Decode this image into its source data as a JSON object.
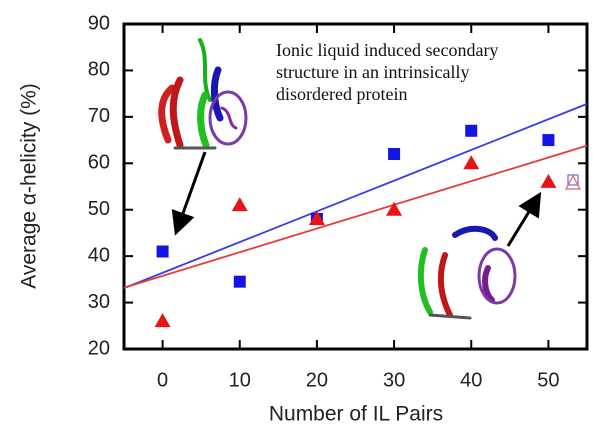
{
  "chart_data": {
    "type": "scatter",
    "xlabel": "Number of IL Pairs",
    "ylabel": "Average α-helicity (%)",
    "annotation": [
      "Ionic liquid induced secondary",
      "structure in an intrinsically",
      "disordered protein"
    ],
    "series": [
      {
        "color": "#1414e6",
        "marker": "square",
        "x": [
          0,
          10,
          20,
          30,
          40,
          50
        ],
        "values": [
          41,
          34.5,
          48,
          62,
          67,
          65
        ]
      },
      {
        "color": "#e61414",
        "marker": "triangle",
        "x": [
          0,
          10,
          20,
          30,
          40,
          50
        ],
        "values": [
          26,
          51,
          48,
          50,
          60,
          56
        ]
      }
    ],
    "fit_lines": [
      {
        "color": "#3a3ae8",
        "x": [
          -5,
          55
        ],
        "values": [
          33.1,
          72.8
        ]
      },
      {
        "color": "#e83a3a",
        "x": [
          -5,
          55
        ],
        "values": [
          33.2,
          63.8
        ]
      }
    ],
    "xlim": [
      -5,
      55
    ],
    "ylim": [
      20,
      90
    ],
    "xticks": [
      0,
      10,
      20,
      30,
      40,
      50
    ],
    "yticks": [
      20,
      30,
      40,
      50,
      60,
      70,
      80,
      90
    ]
  }
}
